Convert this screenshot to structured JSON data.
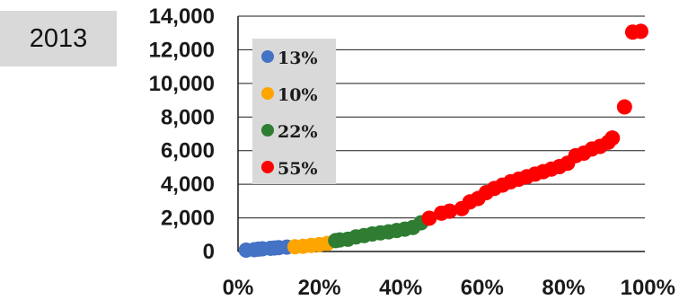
{
  "year_label": "2013",
  "chart_data": {
    "type": "scatter",
    "title": "",
    "xlabel": "",
    "ylabel": "",
    "xlim": [
      0,
      100
    ],
    "ylim": [
      0,
      14000
    ],
    "x_ticks": [
      "0%",
      "20%",
      "40%",
      "60%",
      "80%",
      "100%"
    ],
    "y_ticks": [
      "0",
      "2,000",
      "4,000",
      "6,000",
      "8,000",
      "10,000",
      "12,000",
      "14,000"
    ],
    "grid": "horizontal",
    "legend_placement": "top-left",
    "series": [
      {
        "name": "13%",
        "color": "#4472c4",
        "points": [
          [
            2,
            80
          ],
          [
            4,
            110
          ],
          [
            5,
            140
          ],
          [
            6,
            160
          ],
          [
            8,
            190
          ],
          [
            9,
            210
          ],
          [
            10,
            230
          ],
          [
            12,
            260
          ]
        ]
      },
      {
        "name": "10%",
        "color": "#ffa500",
        "points": [
          [
            14,
            280
          ],
          [
            16,
            310
          ],
          [
            18,
            360
          ],
          [
            20,
            410
          ],
          [
            22,
            480
          ]
        ]
      },
      {
        "name": "22%",
        "color": "#2e7d32",
        "points": [
          [
            24,
            650
          ],
          [
            25,
            690
          ],
          [
            27,
            730
          ],
          [
            29,
            870
          ],
          [
            31,
            950
          ],
          [
            33,
            1040
          ],
          [
            35,
            1110
          ],
          [
            37,
            1170
          ],
          [
            39,
            1250
          ],
          [
            41,
            1330
          ],
          [
            43,
            1430
          ],
          [
            45,
            1710
          ]
        ]
      },
      {
        "name": "55%",
        "color": "#ff0000",
        "points": [
          [
            47,
            1980
          ],
          [
            50,
            2280
          ],
          [
            52,
            2400
          ],
          [
            55,
            2550
          ],
          [
            57,
            2950
          ],
          [
            59,
            3150
          ],
          [
            61,
            3500
          ],
          [
            63,
            3750
          ],
          [
            65,
            3950
          ],
          [
            67,
            4150
          ],
          [
            69,
            4300
          ],
          [
            71,
            4450
          ],
          [
            73,
            4600
          ],
          [
            75,
            4750
          ],
          [
            77,
            4900
          ],
          [
            79,
            5050
          ],
          [
            81,
            5250
          ],
          [
            83,
            5700
          ],
          [
            85,
            5850
          ],
          [
            87,
            6100
          ],
          [
            89,
            6250
          ],
          [
            91,
            6500
          ],
          [
            92,
            6750
          ],
          [
            95,
            8600
          ],
          [
            97,
            13050
          ],
          [
            99,
            13100
          ]
        ]
      }
    ]
  }
}
